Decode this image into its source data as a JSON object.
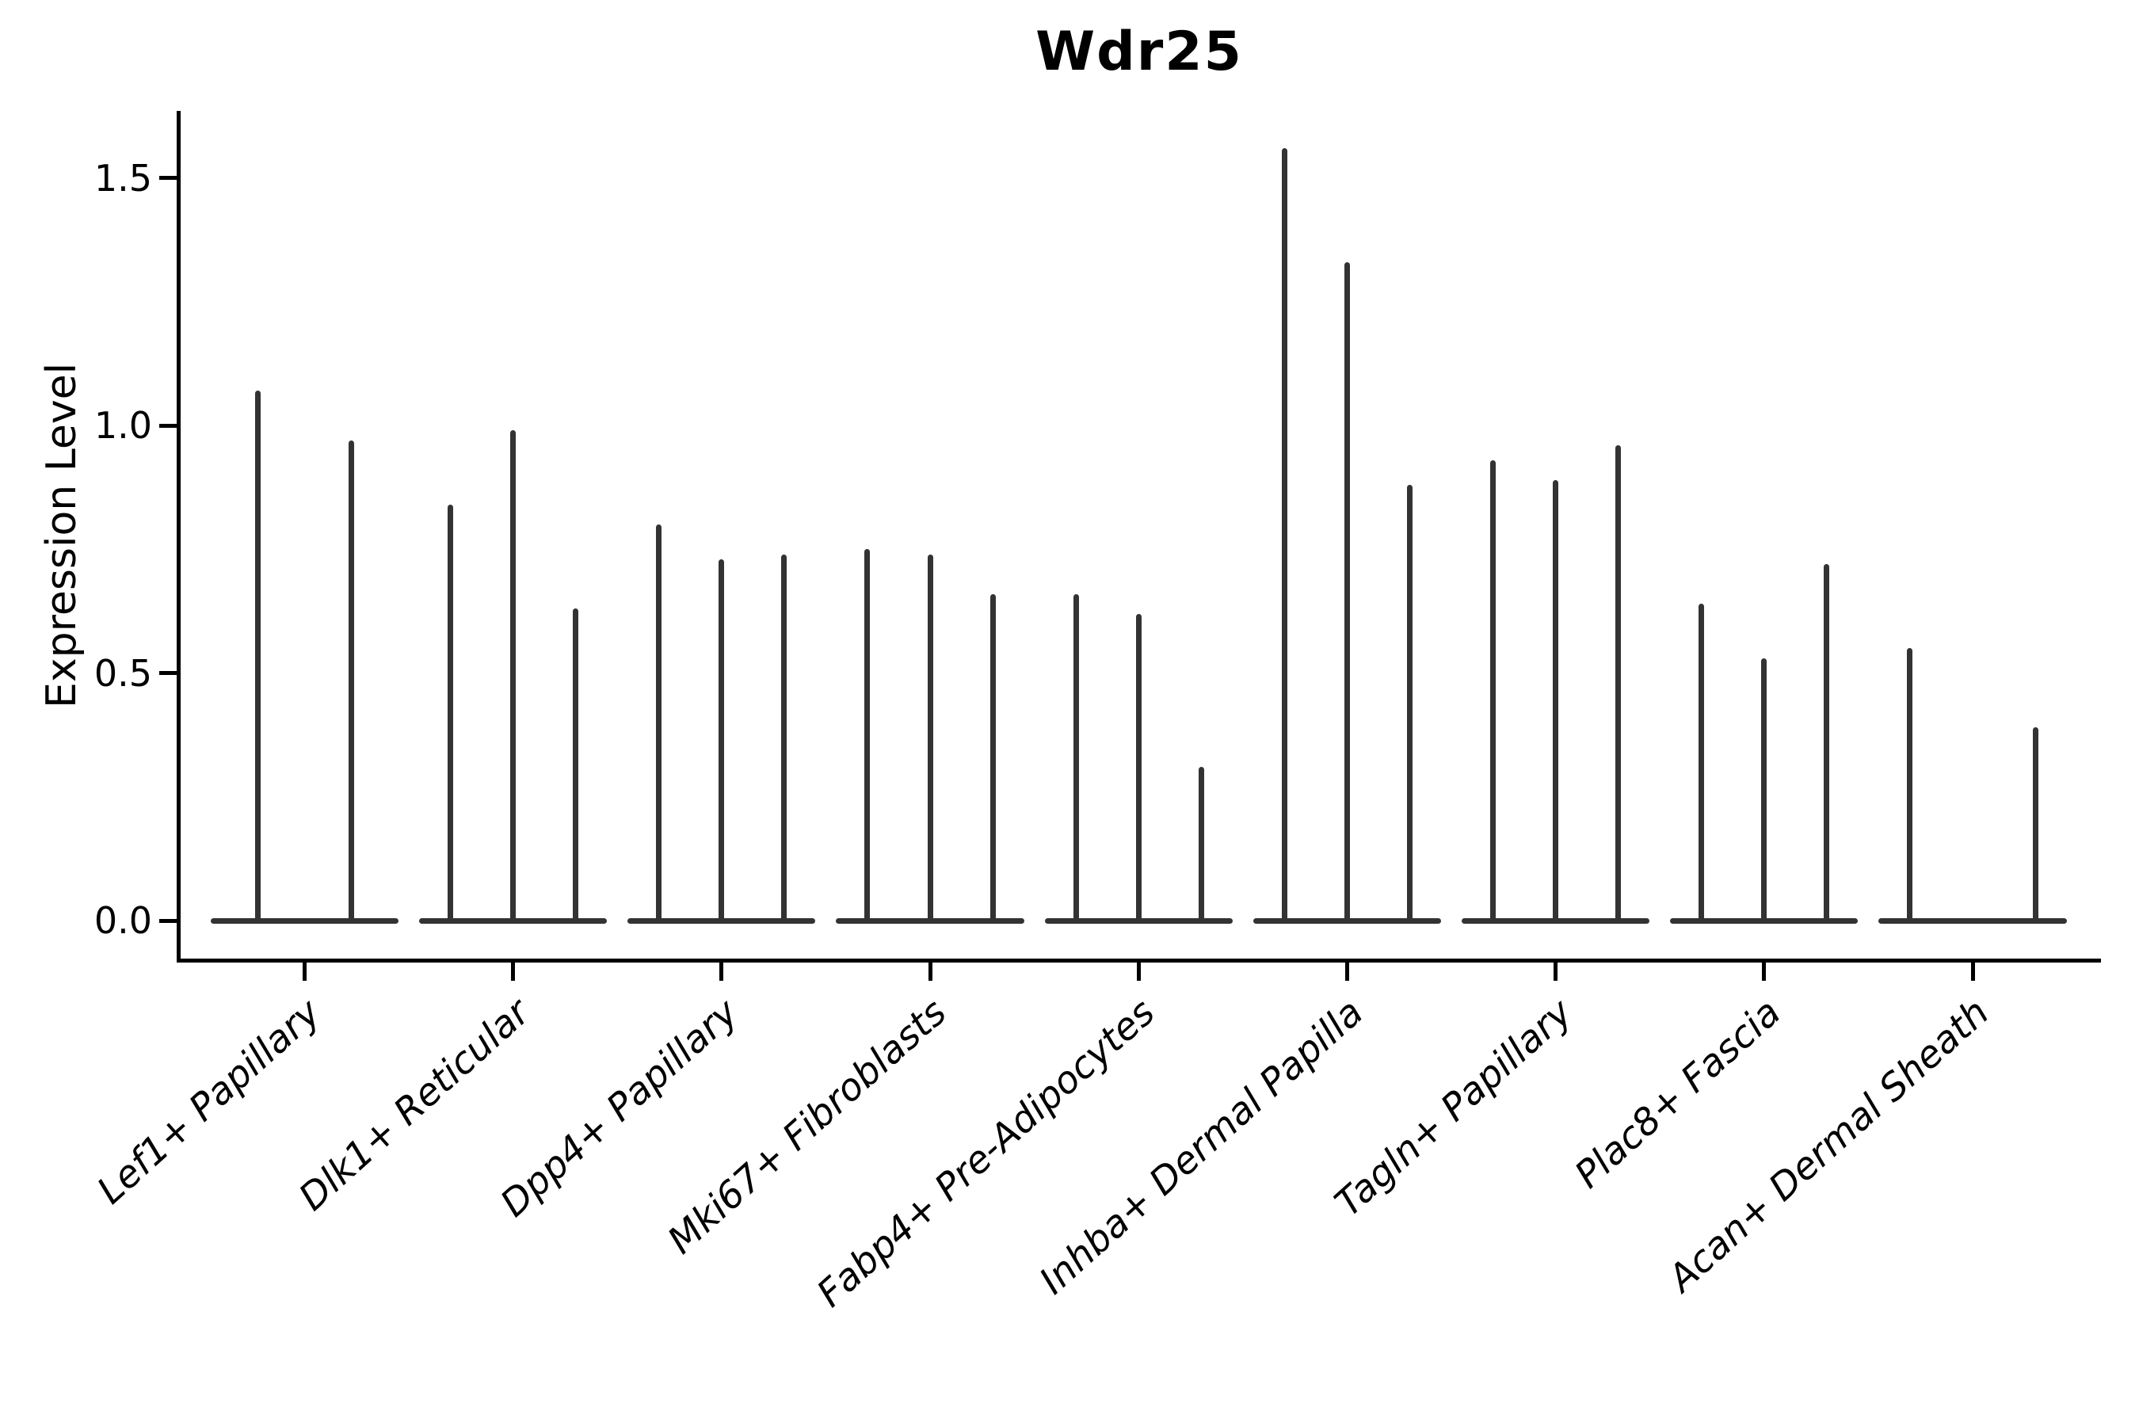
{
  "title": "Wdr25",
  "y_axis": {
    "label": "Expression Level",
    "tick_labels": [
      "0.0",
      "0.5",
      "1.0",
      "1.5"
    ]
  },
  "colors": {
    "background": "#ffffff",
    "axis": "#000000",
    "text": "#000000",
    "violin": "#333333"
  },
  "chart_data": {
    "type": "violin",
    "title": "Wdr25",
    "xlabel": "",
    "ylabel": "Expression Level",
    "ylim": [
      0,
      1.64
    ],
    "yticks": [
      0.0,
      0.5,
      1.0,
      1.5
    ],
    "ytick_labels": [
      "0.0",
      "0.5",
      "1.0",
      "1.5"
    ],
    "grid": false,
    "legend": "none",
    "xtick_rotation_deg": 42,
    "categories": [
      "Lef1+ Papillary",
      "Dlk1+ Reticular",
      "Dpp4+ Papillary",
      "Mki67+ Fibroblasts",
      "Fabp4+ Pre-Adipocytes",
      "Inhba+ Dermal Papilla",
      "Tagln+ Papillary",
      "Plac8+ Fascia",
      "Acan+ Dermal Sheath"
    ],
    "series": [
      {
        "category": "Lef1+ Papillary",
        "violin_max_values": [
          1.07,
          0.97
        ]
      },
      {
        "category": "Dlk1+ Reticular",
        "violin_max_values": [
          0.84,
          0.99,
          0.63
        ]
      },
      {
        "category": "Dpp4+ Papillary",
        "violin_max_values": [
          0.8,
          0.73,
          0.74
        ]
      },
      {
        "category": "Mki67+ Fibroblasts",
        "violin_max_values": [
          0.75,
          0.74,
          0.66
        ]
      },
      {
        "category": "Fabp4+ Pre-Adipocytes",
        "violin_max_values": [
          0.66,
          0.62,
          0.31
        ]
      },
      {
        "category": "Inhba+ Dermal Papilla",
        "violin_max_values": [
          1.56,
          1.33,
          0.88
        ]
      },
      {
        "category": "Tagln+ Papillary",
        "violin_max_values": [
          0.93,
          0.89,
          0.96
        ]
      },
      {
        "category": "Plac8+ Fascia",
        "violin_max_values": [
          0.64,
          0.53,
          0.72
        ]
      },
      {
        "category": "Acan+ Dermal Sheath",
        "violin_max_values": [
          0.55,
          null,
          0.39
        ]
      }
    ],
    "notes": "Violin bodies are collapsed flat at 0 expression; each thin vertical spike rises to the maximum expression value of that violin. One violin (middle of Acan+ Dermal Sheath) has no spike."
  }
}
